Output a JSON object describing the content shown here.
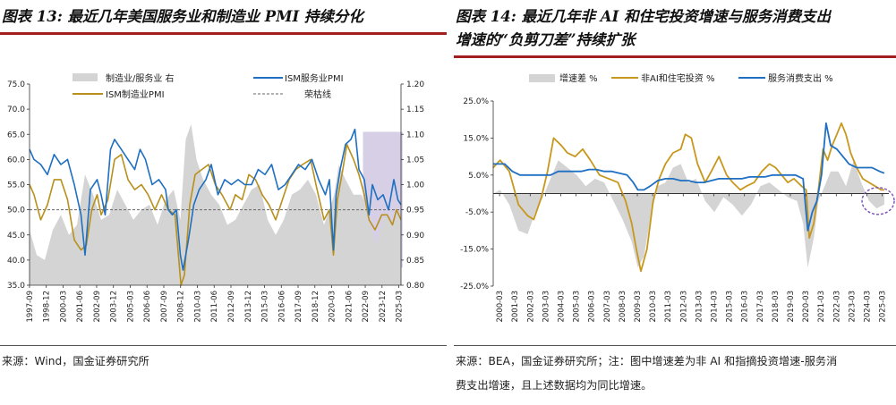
{
  "left": {
    "title": "图表 13: 最近几年美国服务业和制造业 PMI 持续分化",
    "source": "来源：Wind，国金证券研究所",
    "legend": [
      "制造业/服务业 右",
      "ISM服务业PMI",
      "ISM制造业PMI",
      "荣枯线"
    ],
    "colors": {
      "services": "#1f6fc2",
      "manufacturing": "#b8901c",
      "ratio": "#d4d4d4",
      "highlight": "#d6cfe6",
      "baseline": "#666666"
    }
  },
  "right": {
    "title_line1": "图表 14: 最近几年非 AI 和住宅投资增速与服务消费支出",
    "title_line2": "增速的“负剪刀差”持续扩张",
    "source_line1": "来源：BEA，国金证券研究所；注：图中增速差为非 AI 和指摘投资增速-服务消",
    "source_line2": "费支出增速，且上述数据均为同比增速。",
    "legend": [
      "增速差 %",
      "非AI和住宅投资 %",
      "服务消费支出 %"
    ],
    "colors": {
      "gap": "#d4d4d4",
      "investment": "#c8981e",
      "consumption": "#1f6fc2",
      "circle": "#7b4fb5"
    }
  },
  "chart_data": [
    {
      "type": "line",
      "title": "最近几年美国服务业和制造业 PMI 持续分化",
      "x_ticks": [
        "1997-09",
        "1998-12",
        "2000-03",
        "2001-06",
        "2002-09",
        "2003-12",
        "2005-03",
        "2006-06",
        "2007-09",
        "2008-12",
        "2010-03",
        "2011-06",
        "2012-09",
        "2013-12",
        "2015-03",
        "2016-06",
        "2017-09",
        "2018-12",
        "2020-03",
        "2021-06",
        "2022-09",
        "2023-12",
        "2025-03"
      ],
      "x_range": [
        1997.67,
        2025.33
      ],
      "ylim": [
        35,
        75
      ],
      "y_ticks": [
        "35.0",
        "40.0",
        "45.0",
        "50.0",
        "55.0",
        "60.0",
        "65.0",
        "70.0",
        "75.0"
      ],
      "y2lim": [
        0.8,
        1.2
      ],
      "y2_ticks": [
        "0.80",
        "0.85",
        "0.90",
        "0.95",
        "1.00",
        "1.05",
        "1.10",
        "1.15",
        "1.20"
      ],
      "baseline": 50,
      "highlight_x": [
        2022.5,
        2025.45
      ],
      "series": [
        {
          "name": "ISM服务业PMI",
          "axis": "left",
          "x": [
            1997.67,
            1998.0,
            1998.5,
            1999.0,
            1999.5,
            2000.0,
            2000.5,
            2001.0,
            2001.5,
            2001.8,
            2002.2,
            2002.7,
            2003.0,
            2003.3,
            2003.7,
            2004.0,
            2004.5,
            2005.0,
            2005.5,
            2005.9,
            2006.3,
            2006.8,
            2007.3,
            2007.8,
            2008.0,
            2008.3,
            2008.6,
            2008.9,
            2009.1,
            2009.5,
            2009.9,
            2010.3,
            2010.8,
            2011.2,
            2011.7,
            2012.2,
            2012.7,
            2013.2,
            2013.7,
            2014.2,
            2014.7,
            2015.2,
            2015.7,
            2016.2,
            2016.7,
            2017.2,
            2017.7,
            2018.2,
            2018.7,
            2019.2,
            2019.7,
            2020.0,
            2020.3,
            2020.5,
            2020.8,
            2021.2,
            2021.6,
            2021.9,
            2022.2,
            2022.6,
            2022.95,
            2023.2,
            2023.6,
            2024.0,
            2024.4,
            2024.8,
            2025.1,
            2025.33
          ],
          "values": [
            62,
            60,
            59,
            57,
            61,
            59,
            60,
            55,
            49,
            41,
            54,
            56,
            53,
            49,
            62,
            64,
            62,
            60,
            58,
            62,
            60,
            55,
            56,
            54,
            50,
            49,
            50,
            41,
            38,
            44,
            51,
            54,
            56,
            59,
            53,
            56,
            55,
            56,
            55,
            55,
            58,
            57,
            59,
            54,
            55,
            57,
            59,
            58,
            60,
            56,
            53,
            56,
            42,
            53,
            58,
            63,
            64,
            66,
            58,
            56,
            49,
            55,
            52,
            53,
            50,
            56,
            52,
            51
          ]
        },
        {
          "name": "ISM制造业PMI",
          "axis": "left",
          "x": [
            1997.67,
            1998.0,
            1998.5,
            1999.0,
            1999.5,
            2000.0,
            2000.5,
            2001.0,
            2001.5,
            2001.9,
            2002.3,
            2002.7,
            2003.0,
            2003.5,
            2004.0,
            2004.5,
            2005.0,
            2005.5,
            2006.0,
            2006.5,
            2007.0,
            2007.5,
            2008.0,
            2008.5,
            2008.95,
            2009.2,
            2009.6,
            2010.0,
            2010.5,
            2011.0,
            2011.5,
            2012.0,
            2012.6,
            2013.0,
            2013.5,
            2014.0,
            2014.5,
            2015.0,
            2015.5,
            2016.0,
            2016.5,
            2017.0,
            2017.5,
            2018.0,
            2018.6,
            2019.0,
            2019.6,
            2020.0,
            2020.3,
            2020.6,
            2021.0,
            2021.3,
            2021.8,
            2022.2,
            2022.6,
            2022.95,
            2023.4,
            2023.9,
            2024.3,
            2024.7,
            2025.0,
            2025.33
          ],
          "values": [
            55,
            53,
            48,
            51,
            56,
            56,
            52,
            44,
            42,
            43,
            50,
            53,
            49,
            52,
            60,
            61,
            56,
            54,
            55,
            53,
            50,
            53,
            50,
            49,
            35,
            37,
            51,
            57,
            58,
            59,
            55,
            53,
            50,
            53,
            52,
            57,
            56,
            53,
            51,
            48,
            52,
            56,
            58,
            59,
            60,
            55,
            48,
            50,
            41,
            52,
            58,
            63,
            60,
            57,
            53,
            48,
            46,
            49,
            49,
            47,
            50,
            48
          ]
        },
        {
          "name": "制造业/服务业",
          "axis": "right",
          "style": "area",
          "x": [
            1997.67,
            1998.2,
            1998.8,
            1999.4,
            2000.0,
            2000.6,
            2001.2,
            2001.8,
            2002.4,
            2003.0,
            2003.6,
            2004.2,
            2004.8,
            2005.4,
            2006.0,
            2006.6,
            2007.2,
            2007.8,
            2008.4,
            2008.9,
            2009.3,
            2009.7,
            2010.1,
            2010.6,
            2011.2,
            2011.8,
            2012.4,
            2013.0,
            2013.6,
            2014.2,
            2014.8,
            2015.4,
            2016.0,
            2016.6,
            2017.2,
            2017.8,
            2018.4,
            2019.0,
            2019.6,
            2020.0,
            2020.35,
            2020.7,
            2021.2,
            2021.8,
            2022.4,
            2022.9,
            2023.5,
            2024.1,
            2024.7,
            2025.33
          ],
          "values": [
            0.91,
            0.86,
            0.85,
            0.91,
            0.94,
            0.9,
            0.92,
            1.02,
            0.98,
            0.93,
            0.94,
            0.99,
            0.96,
            0.93,
            0.95,
            0.96,
            0.92,
            0.97,
            0.99,
            0.93,
            1.09,
            1.12,
            1.05,
            1.01,
            0.98,
            0.96,
            0.92,
            0.93,
            0.96,
            0.99,
            1.0,
            0.93,
            0.9,
            0.93,
            0.98,
            0.99,
            1.01,
            0.98,
            0.92,
            0.95,
            0.98,
            1.04,
            1.01,
            0.98,
            0.98,
            0.93,
            0.88,
            0.94,
            0.92,
            0.95
          ]
        },
        {
          "name": "荣枯线",
          "axis": "left",
          "style": "dashed",
          "x": [
            1997.67,
            2025.33
          ],
          "values": [
            50,
            50
          ]
        }
      ]
    },
    {
      "type": "line",
      "title": "非AI和住宅投资增速与服务消费支出增速",
      "x_ticks": [
        "2000-03",
        "2001-03",
        "2002-03",
        "2003-03",
        "2004-03",
        "2005-03",
        "2006-03",
        "2007-03",
        "2008-03",
        "2009-03",
        "2010-03",
        "2011-03",
        "2012-03",
        "2013-03",
        "2014-03",
        "2015-03",
        "2016-03",
        "2017-03",
        "2018-03",
        "2019-03",
        "2020-03",
        "2021-03",
        "2022-03",
        "2023-03",
        "2024-03",
        "2025-03"
      ],
      "x_range": [
        1999.75,
        2025.6
      ],
      "ylim": [
        -25,
        25
      ],
      "y_ticks": [
        "-25.0%",
        "-15.0%",
        "-5.0%",
        "5.0%",
        "15.0%",
        "25.0%"
      ],
      "circle_center": [
        2024.9,
        -2.0
      ],
      "series": [
        {
          "name": "增速差",
          "unit": "%",
          "style": "area",
          "x": [
            1999.75,
            2000.2,
            2000.8,
            2001.4,
            2002.0,
            2002.5,
            2003.0,
            2003.5,
            2004.0,
            2004.6,
            2005.2,
            2005.8,
            2006.4,
            2007.0,
            2007.6,
            2008.2,
            2008.8,
            2009.2,
            2009.6,
            2010.0,
            2010.5,
            2011.0,
            2011.5,
            2012.0,
            2012.5,
            2013.0,
            2013.6,
            2014.2,
            2014.8,
            2015.4,
            2016.0,
            2016.6,
            2017.2,
            2017.8,
            2018.4,
            2019.0,
            2019.6,
            2020.0,
            2020.3,
            2020.7,
            2021.0,
            2021.4,
            2021.8,
            2022.3,
            2022.8,
            2023.3,
            2023.8,
            2024.3,
            2024.8,
            2025.3
          ],
          "values": [
            0,
            1,
            -3,
            -10,
            -11,
            -5,
            -1,
            4,
            9,
            7,
            5,
            2,
            4,
            3,
            -2,
            -7,
            -13,
            -20,
            -17,
            -7,
            2,
            3,
            7,
            8,
            3,
            4,
            -2,
            -5,
            -1,
            -3,
            -6,
            -3,
            2,
            3,
            1,
            -1,
            -2,
            -8,
            -20,
            -12,
            -2,
            2,
            6,
            6,
            2,
            9,
            3,
            -2,
            -4,
            -3
          ]
        },
        {
          "name": "非AI和住宅投资",
          "unit": "%",
          "x": [
            1999.75,
            2000.2,
            2000.8,
            2001.4,
            2002.0,
            2002.4,
            2002.9,
            2003.3,
            2003.7,
            2004.2,
            2004.6,
            2005.1,
            2005.6,
            2006.1,
            2006.7,
            2007.3,
            2007.9,
            2008.4,
            2008.8,
            2009.1,
            2009.4,
            2009.8,
            2010.2,
            2010.6,
            2011.0,
            2011.5,
            2012.0,
            2012.3,
            2012.7,
            2013.1,
            2013.6,
            2014.0,
            2014.5,
            2015.0,
            2015.4,
            2015.9,
            2016.3,
            2016.8,
            2017.3,
            2017.8,
            2018.2,
            2018.6,
            2019.0,
            2019.4,
            2019.9,
            2020.2,
            2020.4,
            2020.7,
            2021.0,
            2021.3,
            2021.6,
            2021.9,
            2022.2,
            2022.5,
            2022.8,
            2023.1,
            2023.5,
            2023.9,
            2024.3,
            2024.7,
            2025.1,
            2025.3
          ],
          "values": [
            7,
            9,
            6,
            -3,
            -6,
            -7,
            -1,
            6,
            15,
            13,
            11,
            10,
            12,
            9,
            5,
            4,
            3,
            -2,
            -8,
            -15,
            -21,
            -15,
            -2,
            4,
            8,
            11,
            12,
            16,
            15,
            8,
            3,
            6,
            10,
            5,
            3,
            1,
            2,
            3,
            6,
            8,
            7,
            5,
            3,
            4,
            2,
            1,
            -12,
            -8,
            1,
            12,
            9,
            13,
            16,
            19,
            16,
            11,
            7,
            4,
            3,
            2,
            1,
            1
          ]
        },
        {
          "name": "服务消费支出",
          "unit": "%",
          "x": [
            1999.75,
            2000.5,
            2001.0,
            2001.5,
            2002.0,
            2002.5,
            2003.0,
            2003.5,
            2004.0,
            2004.5,
            2005.0,
            2005.5,
            2006.0,
            2006.5,
            2007.0,
            2007.5,
            2008.0,
            2008.5,
            2008.9,
            2009.2,
            2009.6,
            2010.0,
            2010.5,
            2011.0,
            2011.5,
            2012.0,
            2012.5,
            2013.0,
            2013.5,
            2014.0,
            2014.5,
            2015.0,
            2015.5,
            2016.0,
            2016.5,
            2017.0,
            2017.5,
            2018.0,
            2018.5,
            2019.0,
            2019.5,
            2020.0,
            2020.3,
            2020.6,
            2020.9,
            2021.2,
            2021.5,
            2021.8,
            2022.2,
            2022.6,
            2023.0,
            2023.5,
            2024.0,
            2024.5,
            2025.0,
            2025.3
          ],
          "values": [
            8,
            8,
            6,
            5,
            5,
            5,
            5,
            5,
            6,
            6,
            6,
            6,
            6.5,
            6.5,
            6,
            6,
            5.5,
            5,
            3,
            1,
            1,
            2,
            3.5,
            4,
            4,
            3.5,
            3.5,
            3,
            3,
            3.5,
            4,
            4,
            4,
            4,
            4.5,
            4.5,
            4.5,
            5,
            5,
            5,
            5,
            4,
            -10,
            -5,
            -2,
            5,
            19,
            13,
            12,
            10,
            8,
            7,
            7,
            7,
            6,
            5.5
          ]
        }
      ]
    }
  ]
}
